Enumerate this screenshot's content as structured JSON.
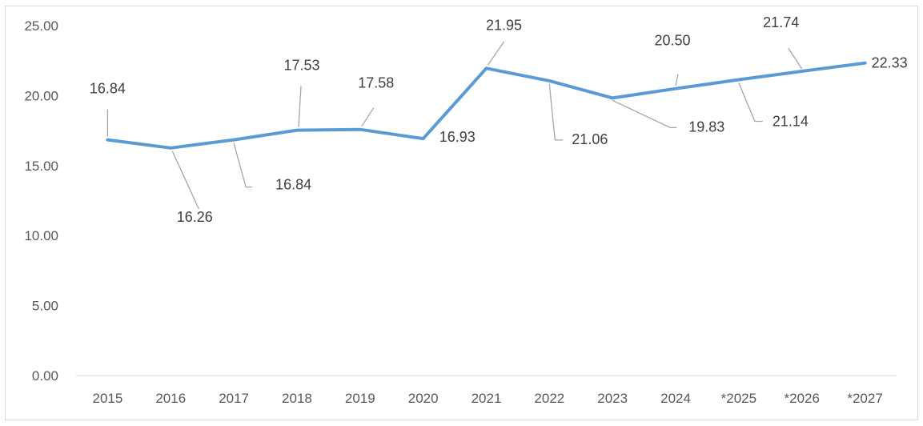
{
  "chart_data": {
    "type": "line",
    "categories": [
      "2015",
      "2016",
      "2017",
      "2018",
      "2019",
      "2020",
      "2021",
      "2022",
      "2023",
      "2024",
      "*2025",
      "*2026",
      "*2027"
    ],
    "series": [
      {
        "values": [
          16.84,
          16.26,
          16.84,
          17.53,
          17.58,
          16.93,
          21.95,
          21.06,
          19.83,
          20.5,
          21.14,
          21.74,
          22.33
        ],
        "data_labels": [
          "16.84",
          "16.26",
          "16.84",
          "17.53",
          "17.58",
          "16.93",
          "21.95",
          "21.06",
          "19.83",
          "20.50",
          "21.14",
          "21.74",
          "22.33"
        ]
      }
    ],
    "y_ticks": [
      "0.00",
      "5.00",
      "10.00",
      "15.00",
      "20.00",
      "25.00"
    ],
    "ylim": [
      0,
      25
    ],
    "grid": false,
    "legend": "none",
    "line_color": "#5b9bd5",
    "leader_color": "#a6a6a6"
  }
}
